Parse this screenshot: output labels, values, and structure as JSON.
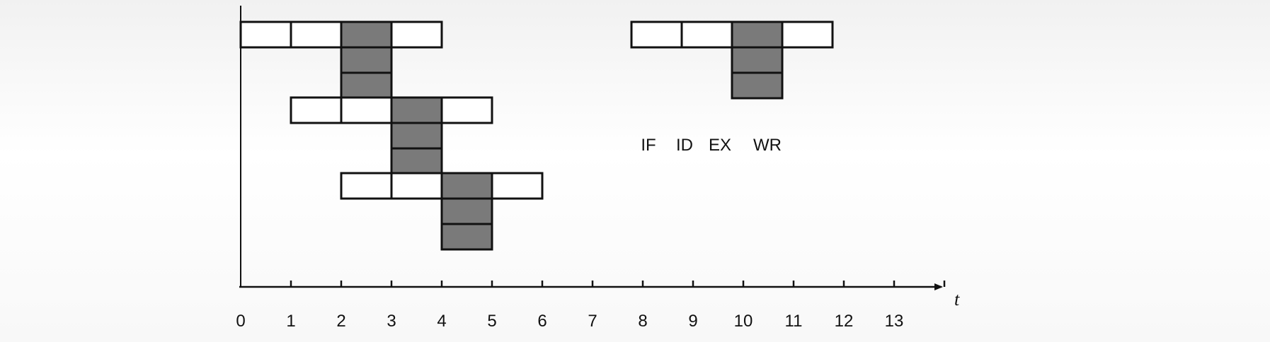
{
  "colors": {
    "fill_ex": "#7a7a7a",
    "fill_stage": "#ffffff",
    "line": "#111111"
  },
  "axis": {
    "variable": "t",
    "ticks": [
      "0",
      "1",
      "2",
      "3",
      "4",
      "5",
      "6",
      "7",
      "8",
      "9",
      "10",
      "11",
      "12",
      "13"
    ]
  },
  "instructions": [
    {
      "start": 0,
      "stages": [
        "IF",
        "ID",
        "EX",
        "WR"
      ],
      "ex_cycles": 3
    },
    {
      "start": 1,
      "stages": [
        "IF",
        "ID",
        "EX",
        "WR"
      ],
      "ex_cycles": 3
    },
    {
      "start": 2,
      "stages": [
        "IF",
        "ID",
        "EX",
        "WR"
      ],
      "ex_cycles": 3
    }
  ],
  "legend": {
    "stages": [
      "IF",
      "ID",
      "EX",
      "WR"
    ],
    "shaded_stage": "EX",
    "ex_cycles": 3
  }
}
